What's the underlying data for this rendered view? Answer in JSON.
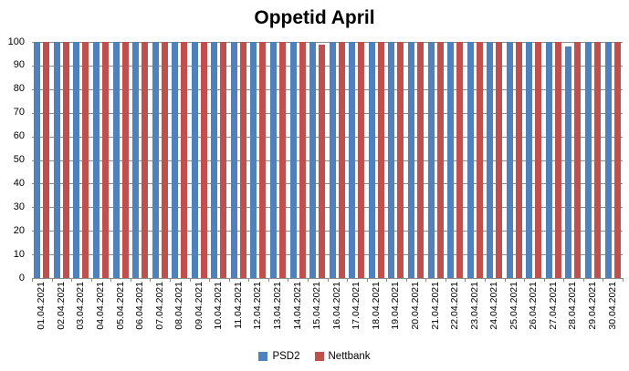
{
  "chart_data": {
    "type": "bar",
    "title": "Oppetid April",
    "categories": [
      "01.04.2021",
      "02.04.2021",
      "03.04.2021",
      "04.04.2021",
      "05.04.2021",
      "06.04.2021",
      "07.04.2021",
      "08.04.2021",
      "09.04.2021",
      "10.04.2021",
      "11.04.2021",
      "12.04.2021",
      "13.04.2021",
      "14.04.2021",
      "15.04.2021",
      "16.04.2021",
      "17.04.2021",
      "18.04.2021",
      "19.04.2021",
      "20.04.2021",
      "21.04.2021",
      "22.04.2021",
      "23.04.2021",
      "24.04.2021",
      "25.04.2021",
      "26.04.2021",
      "27.04.2021",
      "28.04.2021",
      "29.04.2021",
      "30.04.2021"
    ],
    "series": [
      {
        "name": "PSD2",
        "color": "#4F81BD",
        "values": [
          100,
          100,
          100,
          100,
          100,
          100,
          100,
          100,
          100,
          100,
          100,
          100,
          100,
          100,
          100,
          100,
          100,
          100,
          100,
          100,
          100,
          100,
          100,
          100,
          100,
          100,
          100,
          98,
          100,
          100
        ]
      },
      {
        "name": "Nettbank",
        "color": "#C0504D",
        "values": [
          100,
          100,
          100,
          100,
          100,
          100,
          100,
          100,
          100,
          100,
          100,
          100,
          100,
          100,
          99,
          100,
          100,
          100,
          100,
          100,
          100,
          100,
          100,
          100,
          100,
          100,
          100,
          100,
          100,
          100
        ]
      }
    ],
    "xlabel": "",
    "ylabel": "",
    "ylim": [
      0,
      100
    ],
    "ytick_step": 10,
    "ytick_labels": [
      "0",
      "10",
      "20",
      "30",
      "40",
      "50",
      "60",
      "70",
      "80",
      "90",
      "100"
    ],
    "grid": true,
    "legend_position": "bottom"
  },
  "colors": {
    "grid": "#8C8C8C",
    "axis": "#8C8C8C",
    "text": "#000000",
    "background": "#FFFFFF"
  }
}
